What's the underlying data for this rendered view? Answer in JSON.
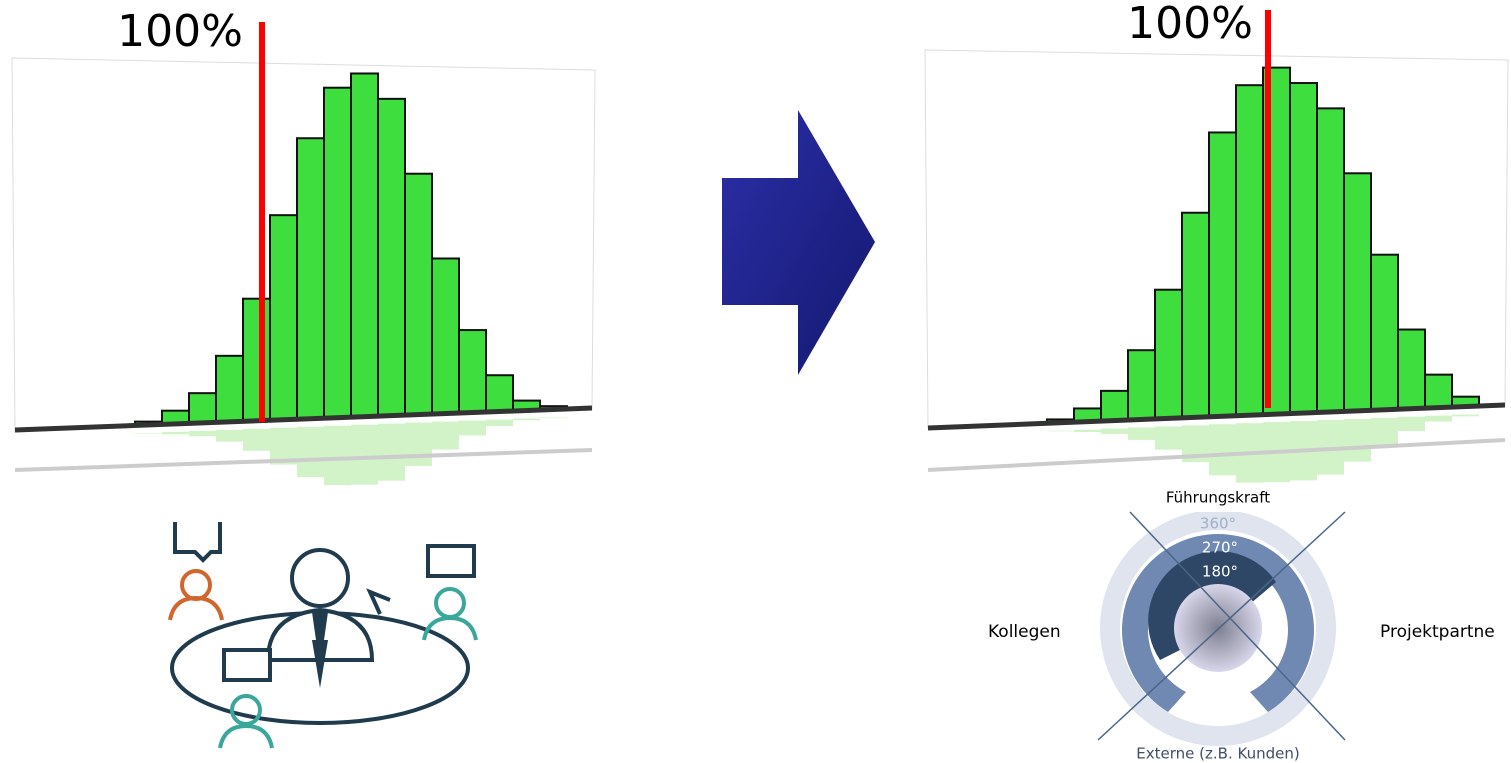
{
  "left_chart": {
    "label": "100%",
    "values": [
      1,
      4,
      9,
      20,
      37,
      62,
      85,
      100,
      104,
      96,
      73,
      47,
      25,
      11,
      3,
      1
    ]
  },
  "right_chart": {
    "label": "100%",
    "values": [
      1,
      4,
      9,
      21,
      39,
      62,
      86,
      100,
      105,
      100,
      92,
      72,
      47,
      24,
      10,
      3
    ]
  },
  "diagram": {
    "top": "Führungskraft",
    "levels": [
      "360°",
      "270°",
      "180°"
    ],
    "left": "Kollegen",
    "right": "Projektpartne",
    "bottom": "Externe (z.B. Kunden)"
  }
}
